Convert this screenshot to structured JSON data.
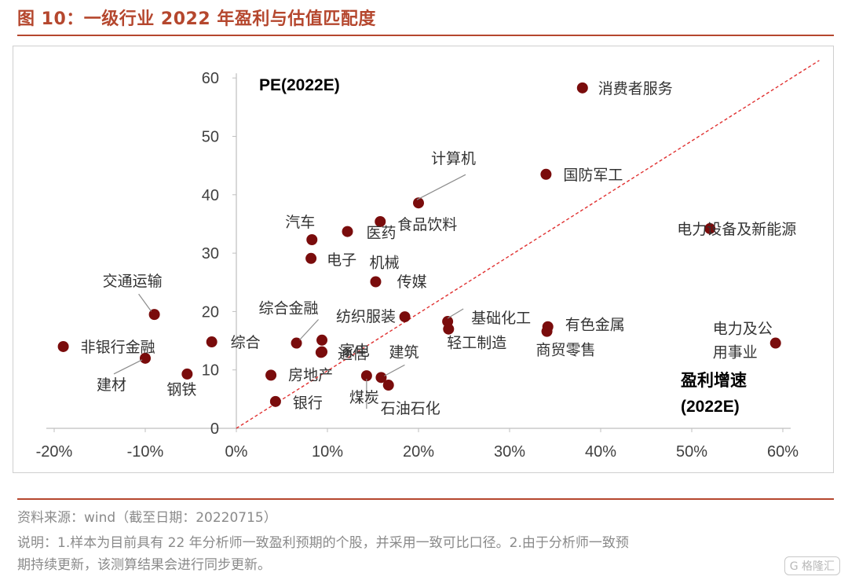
{
  "figure": {
    "title": "图 10：一级行业 2022 年盈利与估值匹配度",
    "source": "资料来源：wind（截至日期：20220715）",
    "note_line1": "说明：1.样本为目前具有 22 年分析师一致盈利预期的个股，并采用一致可比口径。2.由于分析师一致预",
    "note_line2": "期持续更新，该测算结果会进行同步更新。",
    "watermark": "格隆汇"
  },
  "chart_data": {
    "type": "scatter",
    "title": "",
    "ylabel": "PE(2022E)",
    "xlabel_line1": "盈利增速",
    "xlabel_line2": "(2022E)",
    "xlim": [
      -0.2,
      0.6
    ],
    "ylim": [
      0,
      60
    ],
    "xticks": [
      -0.2,
      -0.1,
      0,
      0.1,
      0.2,
      0.3,
      0.4,
      0.5,
      0.6
    ],
    "xtick_labels": [
      "-20%",
      "-10%",
      "0%",
      "10%",
      "20%",
      "30%",
      "40%",
      "50%",
      "60%"
    ],
    "yticks": [
      0,
      10,
      20,
      30,
      40,
      50,
      60
    ],
    "ytick_labels": [
      "0",
      "10",
      "20",
      "30",
      "40",
      "50",
      "60"
    ],
    "grid": false,
    "marker_color": "#7a0c0c",
    "reference_line": {
      "style": "dashed",
      "color": "#e03030",
      "from": [
        0,
        0
      ],
      "to": [
        0.64,
        63
      ]
    },
    "points": [
      {
        "label": "消费者服务",
        "x": 0.38,
        "y": 58.3
      },
      {
        "label": "国防军工",
        "x": 0.34,
        "y": 43.5
      },
      {
        "label": "计算机",
        "x": 0.2,
        "y": 38.6
      },
      {
        "label": "电力设备及新能源",
        "x": 0.52,
        "y": 34.2
      },
      {
        "label": "食品饮料",
        "x": 0.158,
        "y": 35.4
      },
      {
        "label": "医药",
        "x": 0.122,
        "y": 33.7
      },
      {
        "label": "汽车",
        "x": 0.083,
        "y": 32.3
      },
      {
        "label": "电子",
        "x": 0.082,
        "y": 29.1
      },
      {
        "label": "机械",
        "x": 0.153,
        "y": 25.1
      },
      {
        "label": "交通运输",
        "x": -0.09,
        "y": 19.5
      },
      {
        "label": "传媒",
        "x": 0.185,
        "y": 19.1
      },
      {
        "label": "基础化工",
        "x": 0.232,
        "y": 18.3
      },
      {
        "label": "轻工制造",
        "x": 0.233,
        "y": 17.0
      },
      {
        "label": "有色金属",
        "x": 0.342,
        "y": 17.4
      },
      {
        "label": "商贸零售",
        "x": 0.341,
        "y": 16.6
      },
      {
        "label": "电力及公用事业",
        "x": 0.592,
        "y": 14.6
      },
      {
        "label": "纺织服装",
        "x": 0.094,
        "y": 15.1
      },
      {
        "label": "综合金融",
        "x": 0.066,
        "y": 14.6
      },
      {
        "label": "综合",
        "x": -0.027,
        "y": 14.8
      },
      {
        "label": "非银行金融",
        "x": -0.19,
        "y": 14.0
      },
      {
        "label": "家电",
        "x": 0.093,
        "y": 13.0
      },
      {
        "label": "通信",
        "x": 0.094,
        "y": 13.1
      },
      {
        "label": "建材",
        "x": -0.1,
        "y": 12.0
      },
      {
        "label": "钢铁",
        "x": -0.054,
        "y": 9.3
      },
      {
        "label": "房地产",
        "x": 0.038,
        "y": 9.1
      },
      {
        "label": "煤炭",
        "x": 0.143,
        "y": 9.0
      },
      {
        "label": "建筑",
        "x": 0.159,
        "y": 8.7
      },
      {
        "label": "石油石化",
        "x": 0.167,
        "y": 7.4
      },
      {
        "label": "银行",
        "x": 0.043,
        "y": 4.6
      }
    ]
  }
}
